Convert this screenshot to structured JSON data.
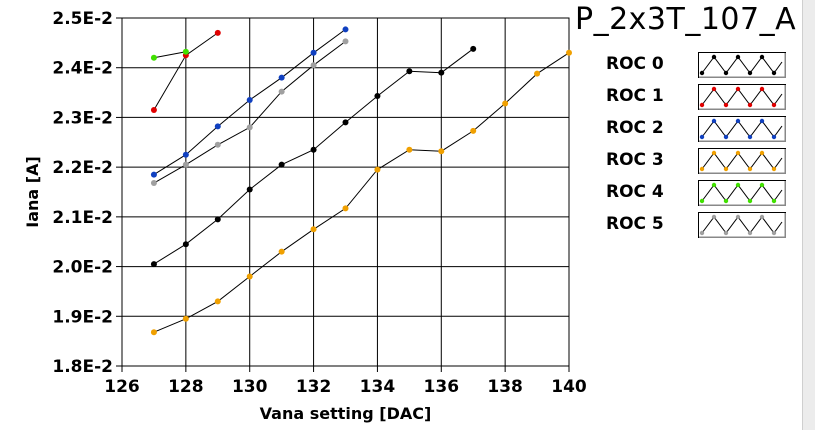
{
  "legend": {
    "title": "P_2x3T_107_A",
    "items": [
      {
        "label": "ROC 0",
        "color": "#000000"
      },
      {
        "label": "ROC 1",
        "color": "#e00000"
      },
      {
        "label": "ROC 2",
        "color": "#1040c0"
      },
      {
        "label": "ROC 3",
        "color": "#f0a000"
      },
      {
        "label": "ROC 4",
        "color": "#40e000"
      },
      {
        "label": "ROC 5",
        "color": "#a0a0a0"
      }
    ]
  },
  "chart_data": {
    "type": "line",
    "title": "P_2x3T_107_A",
    "xlabel": "Vana setting [DAC]",
    "ylabel": "Iana [A]",
    "xlim": [
      126,
      140
    ],
    "ylim": [
      0.018,
      0.025
    ],
    "xticks": [
      126,
      128,
      130,
      132,
      134,
      136,
      138,
      140
    ],
    "xtick_labels": [
      "126",
      "128",
      "130",
      "132",
      "134",
      "136",
      "138",
      "140"
    ],
    "yticks": [
      0.018,
      0.019,
      0.02,
      0.021,
      0.022,
      0.023,
      0.024,
      0.025
    ],
    "ytick_labels": [
      "1.8E-2",
      "1.9E-2",
      "2.0E-2",
      "2.1E-2",
      "2.2E-2",
      "2.3E-2",
      "2.4E-2",
      "2.5E-2"
    ],
    "grid": true,
    "legend_position": "right",
    "series": [
      {
        "name": "ROC 0",
        "color": "#000000",
        "x": [
          127,
          128,
          129,
          130,
          131,
          132,
          133,
          134,
          135,
          136,
          137
        ],
        "y": [
          0.02005,
          0.02045,
          0.02095,
          0.02155,
          0.02205,
          0.02235,
          0.0229,
          0.02343,
          0.02393,
          0.0239,
          0.02438
        ]
      },
      {
        "name": "ROC 1",
        "color": "#e00000",
        "x": [
          127,
          128,
          129
        ],
        "y": [
          0.02315,
          0.02425,
          0.0247
        ]
      },
      {
        "name": "ROC 2",
        "color": "#1040c0",
        "x": [
          127,
          128,
          129,
          130,
          131,
          132,
          133
        ],
        "y": [
          0.02185,
          0.02225,
          0.02282,
          0.02335,
          0.0238,
          0.0243,
          0.02477
        ]
      },
      {
        "name": "ROC 3",
        "color": "#f0a000",
        "x": [
          127,
          128,
          129,
          130,
          131,
          132,
          133,
          134,
          135,
          136,
          137,
          138,
          139,
          140
        ],
        "y": [
          0.01868,
          0.01895,
          0.0193,
          0.0198,
          0.0203,
          0.02075,
          0.02117,
          0.02195,
          0.02235,
          0.02232,
          0.02273,
          0.02328,
          0.02388,
          0.0243
        ]
      },
      {
        "name": "ROC 4",
        "color": "#40e000",
        "x": [
          127,
          128
        ],
        "y": [
          0.0242,
          0.02432
        ]
      },
      {
        "name": "ROC 5",
        "color": "#a0a0a0",
        "x": [
          127,
          128,
          129,
          130,
          131,
          132,
          133
        ],
        "y": [
          0.02168,
          0.02205,
          0.02245,
          0.0228,
          0.02352,
          0.02405,
          0.02453
        ]
      }
    ]
  }
}
